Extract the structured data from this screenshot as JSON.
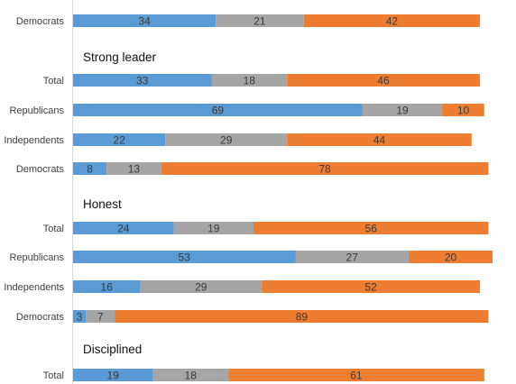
{
  "chart_data": {
    "type": "bar",
    "orientation": "horizontal",
    "stacked": true,
    "colors": [
      "#5b9bd5",
      "#a5a5a5",
      "#ed7d31"
    ],
    "rows": [
      {
        "kind": "bar",
        "label": "Democrats",
        "values": [
          34,
          21,
          42
        ]
      },
      {
        "kind": "section",
        "label": "Strong leader"
      },
      {
        "kind": "bar",
        "label": "Total",
        "values": [
          33,
          18,
          46
        ]
      },
      {
        "kind": "bar",
        "label": "Republicans",
        "values": [
          69,
          19,
          10
        ]
      },
      {
        "kind": "bar",
        "label": "Independents",
        "values": [
          22,
          29,
          44
        ]
      },
      {
        "kind": "bar",
        "label": "Democrats",
        "values": [
          8,
          13,
          78
        ]
      },
      {
        "kind": "section",
        "label": "Honest"
      },
      {
        "kind": "bar",
        "label": "Total",
        "values": [
          24,
          19,
          56
        ]
      },
      {
        "kind": "bar",
        "label": "Republicans",
        "values": [
          53,
          27,
          20
        ]
      },
      {
        "kind": "bar",
        "label": "Independents",
        "values": [
          16,
          29,
          52
        ]
      },
      {
        "kind": "bar",
        "label": "Democrats",
        "values": [
          3,
          7,
          89
        ]
      },
      {
        "kind": "section",
        "label": "Disciplined"
      },
      {
        "kind": "bar",
        "label": "Total",
        "values": [
          19,
          18,
          61
        ]
      }
    ]
  }
}
